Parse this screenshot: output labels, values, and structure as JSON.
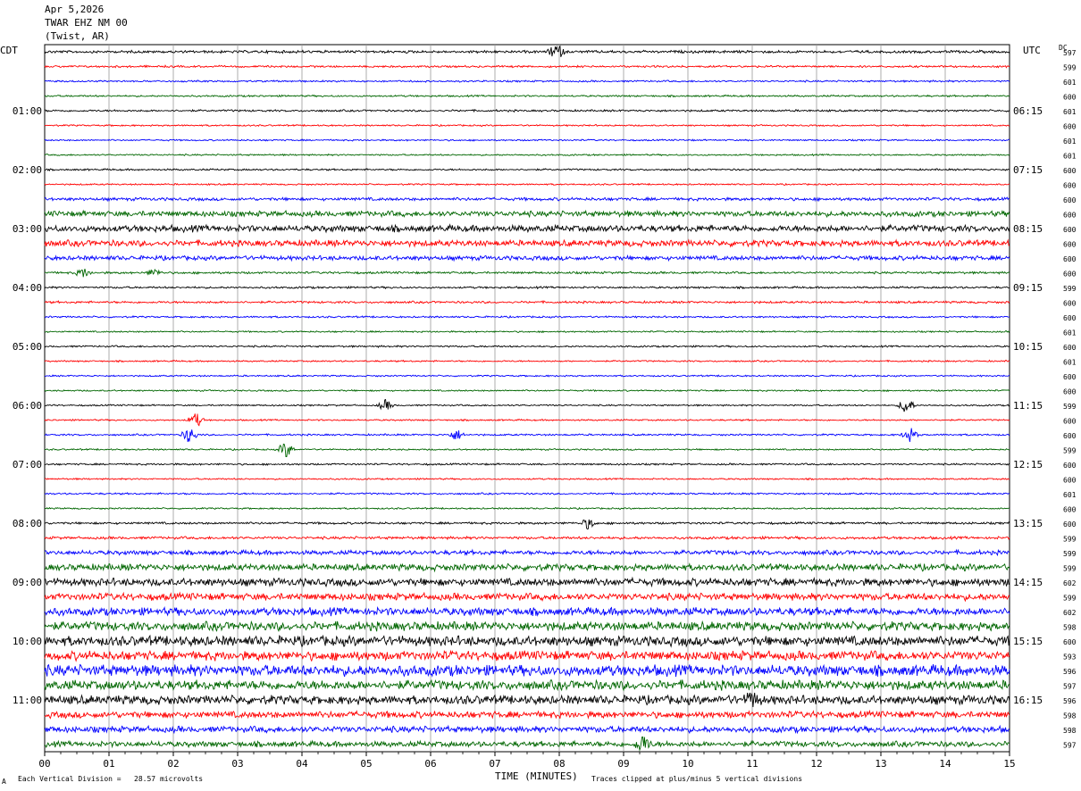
{
  "header": {
    "date": "Apr 5,2026",
    "station": "TWAR EHZ NM 00",
    "location": "(Twist, AR)"
  },
  "left_tz": "CDT",
  "right_tz": "UTC",
  "dc_label": "DC",
  "footer": {
    "scale_note": "Each Vertical Division =   28.57 microvolts",
    "scale_mark": "A",
    "clip_note": "Traces clipped at plus/minus 5 vertical divisions"
  },
  "chart_data": {
    "type": "line",
    "title": "",
    "xlabel": "TIME (MINUTES)",
    "xlim": [
      0,
      15
    ],
    "x_ticks": [
      "00",
      "01",
      "02",
      "03",
      "04",
      "05",
      "06",
      "07",
      "08",
      "09",
      "10",
      "11",
      "12",
      "13",
      "14",
      "15"
    ],
    "left_hour_labels": [
      "01:00",
      "02:00",
      "03:00",
      "04:00",
      "05:00",
      "06:00",
      "07:00",
      "08:00",
      "09:00",
      "10:00",
      "11:00"
    ],
    "right_hour_labels": [
      "06:15",
      "07:15",
      "08:15",
      "09:15",
      "10:15",
      "11:15",
      "12:15",
      "13:15",
      "14:15",
      "15:15",
      "16:15"
    ],
    "trace_colors": [
      "#000000",
      "#ff0000",
      "#0000ff",
      "#006600"
    ],
    "dc_offsets": [
      "597",
      "599",
      "601",
      "600",
      "601",
      "600",
      "601",
      "601",
      "600",
      "600",
      "600",
      "600",
      "600",
      "600",
      "600",
      "600",
      "599",
      "600",
      "600",
      "601",
      "600",
      "601",
      "600",
      "600",
      "599",
      "600",
      "600",
      "599",
      "600",
      "600",
      "601",
      "600",
      "600",
      "599",
      "599",
      "599",
      "602",
      "599",
      "602",
      "598",
      "600",
      "593",
      "596",
      "597",
      "596",
      "598",
      "598",
      "597"
    ],
    "trace_amplitude": [
      1.2,
      0.9,
      0.8,
      0.8,
      0.9,
      0.7,
      0.7,
      0.7,
      0.8,
      0.7,
      1.4,
      2.5,
      3.0,
      2.8,
      2.0,
      1.0,
      0.9,
      1.0,
      0.8,
      0.7,
      0.8,
      0.7,
      0.7,
      0.7,
      0.7,
      0.7,
      0.8,
      0.7,
      0.8,
      0.7,
      0.8,
      0.7,
      1.0,
      1.2,
      2.0,
      3.0,
      3.5,
      3.2,
      3.6,
      4.0,
      4.5,
      4.2,
      5.0,
      4.3,
      4.0,
      3.0,
      2.8,
      2.5
    ],
    "events": [
      {
        "trace": 0,
        "minute": 7.95,
        "amp": 9
      },
      {
        "trace": 15,
        "minute": 0.6,
        "amp": 5
      },
      {
        "trace": 15,
        "minute": 1.7,
        "amp": 4
      },
      {
        "trace": 24,
        "minute": 5.3,
        "amp": 6
      },
      {
        "trace": 24,
        "minute": 13.4,
        "amp": 10
      },
      {
        "trace": 25,
        "minute": 2.35,
        "amp": 8
      },
      {
        "trace": 26,
        "minute": 2.25,
        "amp": 9
      },
      {
        "trace": 26,
        "minute": 6.4,
        "amp": 6
      },
      {
        "trace": 26,
        "minute": 13.45,
        "amp": 8
      },
      {
        "trace": 27,
        "minute": 3.75,
        "amp": 9
      },
      {
        "trace": 32,
        "minute": 8.45,
        "amp": 6
      },
      {
        "trace": 44,
        "minute": 11.0,
        "amp": 8
      },
      {
        "trace": 47,
        "minute": 9.3,
        "amp": 10
      }
    ]
  }
}
